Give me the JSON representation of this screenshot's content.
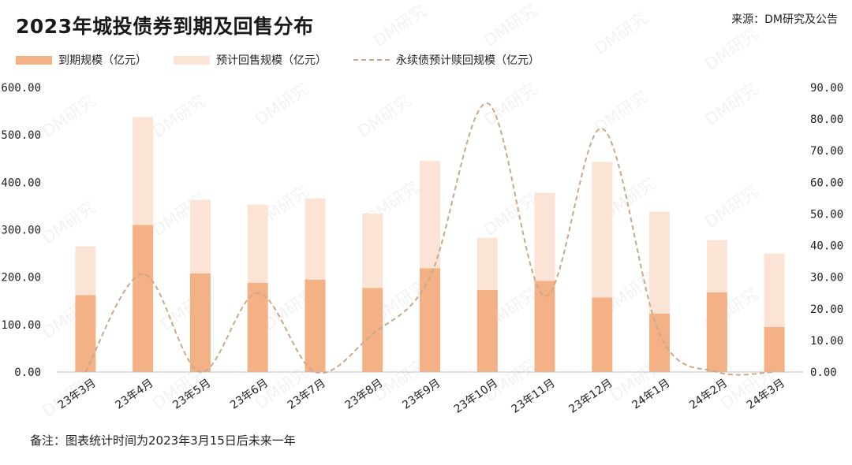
{
  "header": {
    "title": "2023年城投债券到期及回售分布",
    "source": "来源：DM研究及公告"
  },
  "footer": {
    "note": "备注：图表统计时间为2023年3月15日后未来一年"
  },
  "colors": {
    "maturity": "#f3b185",
    "putback": "#fbe3d5",
    "perpetual": "#c9a989",
    "axis": "#bfbfbf"
  },
  "chart_data": {
    "type": "bar",
    "title": "2023年城投债券到期及回售分布",
    "categories": [
      "23年3月",
      "23年4月",
      "23年5月",
      "23年6月",
      "23年7月",
      "23年8月",
      "23年9月",
      "23年10月",
      "23年11月",
      "23年12月",
      "24年1月",
      "24年2月",
      "24年3月"
    ],
    "series": [
      {
        "name": "到期规模（亿元）",
        "kind": "stacked-bar",
        "axis": "left",
        "values": [
          162,
          310,
          208,
          188,
          195,
          177,
          219,
          173,
          192,
          157,
          123,
          168,
          95
        ]
      },
      {
        "name": "预计回售规模（亿元）",
        "kind": "stacked-bar",
        "axis": "left",
        "values": [
          103,
          228,
          155,
          165,
          171,
          157,
          226,
          110,
          186,
          286,
          215,
          110,
          155
        ]
      },
      {
        "name": "永续债预计赎回规模（亿元）",
        "kind": "smooth-dashed-line",
        "axis": "right",
        "values": [
          0,
          31,
          0,
          25,
          0,
          12,
          30,
          85,
          24,
          77,
          12,
          0,
          0
        ]
      }
    ],
    "y_left": {
      "min": 0,
      "max": 600,
      "step": 100,
      "tick_labels": [
        "0.00",
        "100.00",
        "200.00",
        "300.00",
        "400.00",
        "500.00",
        "600.00"
      ]
    },
    "y_right": {
      "min": 0,
      "max": 90,
      "step": 10,
      "tick_labels": [
        "0.00",
        "10.00",
        "20.00",
        "30.00",
        "40.00",
        "50.00",
        "60.00",
        "70.00",
        "80.00",
        "90.00"
      ]
    },
    "legend_position": "top-left",
    "grid": false,
    "watermark": "DM研究"
  }
}
